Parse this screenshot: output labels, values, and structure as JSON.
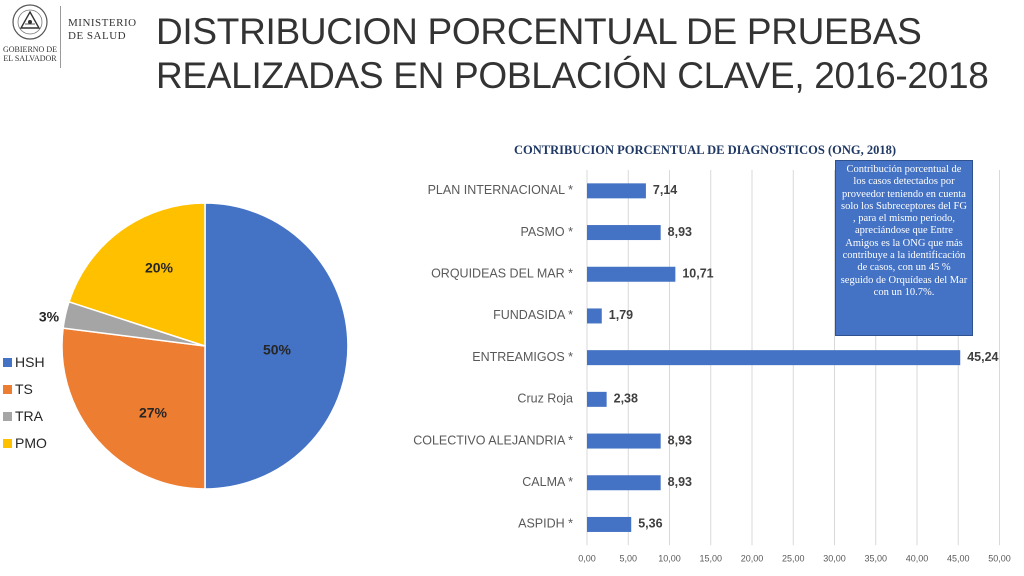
{
  "header": {
    "ministry_line1": "MINISTERIO",
    "ministry_line2": "DE SALUD",
    "gov_line1": "GOBIERNO DE",
    "gov_line2": "EL SALVADOR",
    "title_line1": "DISTRIBUCION PORCENTUAL DE PRUEBAS",
    "title_line2": "REALIZADAS EN POBLACIÓN CLAVE, 2016-2018"
  },
  "callout": {
    "text": "Contribución porcentual de los casos detectados por proveedor teniendo en cuenta solo los Subreceptores del FG , para el mismo periodo, apreciándose que Entre Amigos es la ONG que más contribuye a la identificación de casos, con un 45 % seguido de Orquídeas del Mar con un 10.7%."
  },
  "chart_data": [
    {
      "type": "pie",
      "title": "",
      "categories": [
        "HSH",
        "TS",
        "TRA",
        "PMO"
      ],
      "values": [
        50,
        27,
        3,
        20
      ],
      "labels": [
        "50%",
        "27%",
        "3%",
        "20%"
      ],
      "colors": [
        "#4472c4",
        "#ed7d31",
        "#a5a5a5",
        "#ffc000"
      ],
      "legend": "left"
    },
    {
      "type": "bar",
      "orientation": "horizontal",
      "title": "CONTRIBUCION PORCENTUAL DE DIAGNOSTICOS (ONG, 2018)",
      "categories": [
        "PLAN INTERNACIONAL *",
        "PASMO *",
        "ORQUIDEAS DEL MAR *",
        "FUNDASIDA *",
        "ENTREAMIGOS *",
        "Cruz Roja",
        "COLECTIVO ALEJANDRIA *",
        "CALMA *",
        "ASPIDH *"
      ],
      "values": [
        7.14,
        8.93,
        10.71,
        1.79,
        45.24,
        2.38,
        8.93,
        8.93,
        5.36
      ],
      "value_labels": [
        "7,14",
        "8,93",
        "10,71",
        "1,79",
        "45,24",
        "2,38",
        "8,93",
        "8,93",
        "5,36"
      ],
      "xticks": [
        "0,00",
        "5,00",
        "10,00",
        "15,00",
        "20,00",
        "25,00",
        "30,00",
        "35,00",
        "40,00",
        "45,00",
        "50,00"
      ],
      "xlim": [
        0,
        50
      ],
      "grid": true,
      "color": "#4472c4",
      "title_color": "#1f3864"
    }
  ]
}
